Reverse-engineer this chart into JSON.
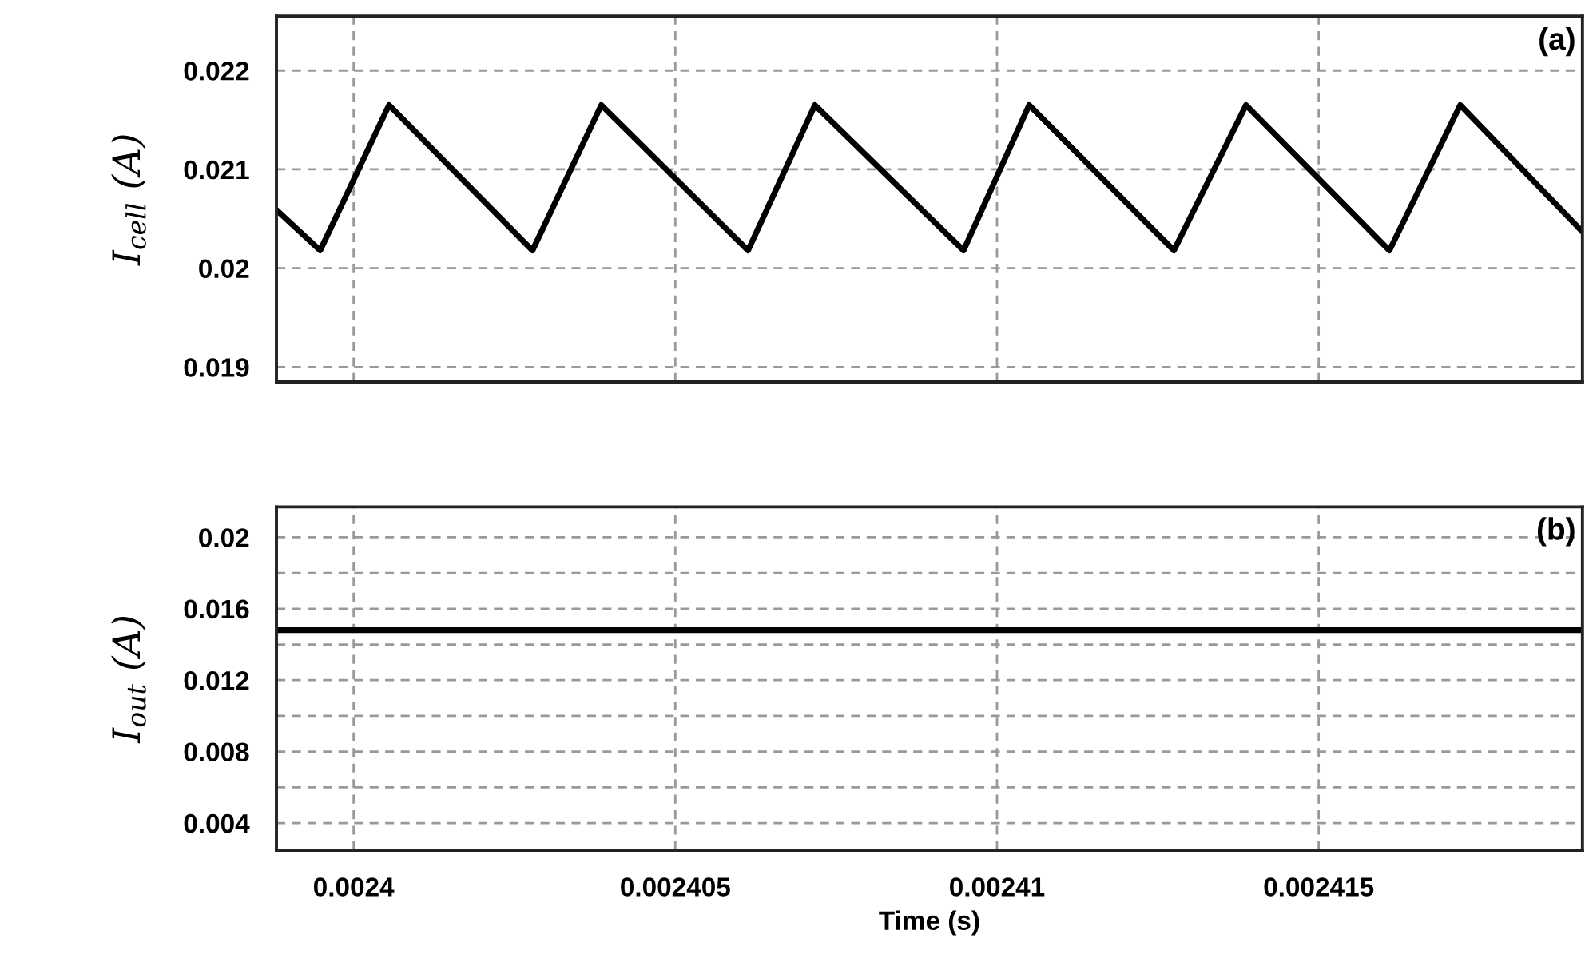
{
  "chart_data": [
    {
      "type": "line",
      "ylabel": "I$_{cell}$ (A)",
      "annotations": [
        "(a)"
      ],
      "x": [
        0.0023988,
        0.00239948,
        0.00240055,
        0.00240278,
        0.00240385,
        0.00240613,
        0.00240717,
        0.00240948,
        0.0024105,
        0.00241275,
        0.00241387,
        0.0024161,
        0.0024172,
        0.0024191
      ],
      "series": [
        {
          "color": "#000000",
          "values": [
            0.02059,
            0.02018,
            0.02165,
            0.02018,
            0.02165,
            0.02018,
            0.02165,
            0.02018,
            0.02165,
            0.02018,
            0.02165,
            0.02018,
            0.02165,
            0.02037
          ]
        }
      ],
      "xlim": [
        0.0023988,
        0.0024191
      ],
      "xticks": [
        {
          "value": 0.0024,
          "label": null
        },
        {
          "value": 0.002405,
          "label": null
        },
        {
          "value": 0.00241,
          "label": null
        },
        {
          "value": 0.002415,
          "label": null
        }
      ],
      "ylim": [
        0.01885,
        0.02255
      ],
      "yticks": [
        0.019,
        0.02,
        0.021,
        0.022
      ],
      "grid": true,
      "tick_labels": "y",
      "line_style": "solid"
    },
    {
      "type": "line",
      "ylabel": "I$_{out}$ (A)",
      "xlabel": "Time (s)",
      "annotations": [
        "(b)"
      ],
      "x": [
        0.0023988,
        0.0024191
      ],
      "series": [
        {
          "color": "#000000",
          "values": [
            0.0148,
            0.0148
          ]
        }
      ],
      "xlim": [
        0.0023988,
        0.0024191
      ],
      "xticks": [
        0.0024,
        0.002405,
        0.00241,
        0.002415
      ],
      "ylim": [
        0.00248,
        0.0217
      ],
      "yticks": [
        0.004,
        {
          "value": 0.006,
          "label": null
        },
        0.008,
        {
          "value": 0.01,
          "label": null
        },
        0.012,
        {
          "value": 0.014,
          "label": null
        },
        0.016,
        {
          "value": 0.018,
          "label": null
        },
        0.02
      ],
      "grid": true,
      "line_style": "solid"
    }
  ]
}
